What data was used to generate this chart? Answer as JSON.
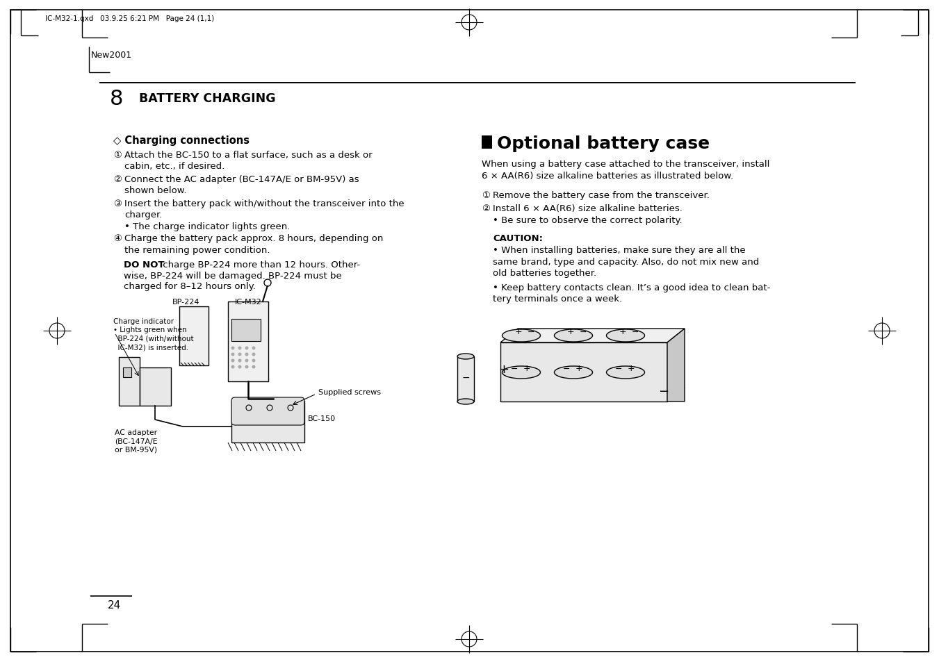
{
  "bg": "#ffffff",
  "header": "IC-M32-1.qxd   03.9.25 6:21 PM   Page 24 (1,1)",
  "watermark": "New2001",
  "chapter_num": "8",
  "chapter_title": "BATTERY CHARGING",
  "s1_head": "◇ Charging connections",
  "s1_items": [
    [
      "①",
      "Attach the BC-150 to a flat surface, such as a desk or\ncabin, etc., if desired."
    ],
    [
      "②",
      "Connect the AC adapter (BC-147A/E or BM-95V) as\nshown below."
    ],
    [
      "③",
      "Insert the battery pack with/without the transceiver into the\ncharger.\n• The charge indicator lights green."
    ],
    [
      "④",
      "Charge the battery pack approx. 8 hours, depending on\nthe remaining power condition."
    ]
  ],
  "s1_caution_bold": "DO NOT",
  "s1_caution_rest": " charge BP-224 more than 12 hours. Other-\nwise, BP-224 will be damaged. BP-224 must be\ncharged for 8–12 hours only.",
  "s2_head": "Optional battery case",
  "s2_intro": "When using a battery case attached to the transceiver, install\n6 × AA(R6) size alkaline batteries as illustrated below.",
  "s2_items": [
    [
      "①",
      "Remove the battery case from the transceiver."
    ],
    [
      "②",
      "Install 6 × AA(R6) size alkaline batteries.\n• Be sure to observe the correct polarity."
    ]
  ],
  "s2_caution_title": "CAUTION:",
  "s2_caution_items": [
    "• When installing batteries, make sure they are all the\nsame brand, type and capacity. Also, do not mix new and\nold batteries together.",
    "• Keep battery contacts clean. It’s a good idea to clean bat-\ntery terminals once a week."
  ],
  "page_number": "24",
  "diag_bp224": "BP-224",
  "diag_icm32": "IC-M32",
  "diag_charge_ind": "Charge indicator\n• Lights green when\n  BP-224 (with/without\n  IC-M32) is inserted.",
  "diag_ac": "AC adapter\n(BC-147A/E\nor BM-95V)",
  "diag_bc150": "BC-150",
  "diag_supplied": "Supplied screws"
}
